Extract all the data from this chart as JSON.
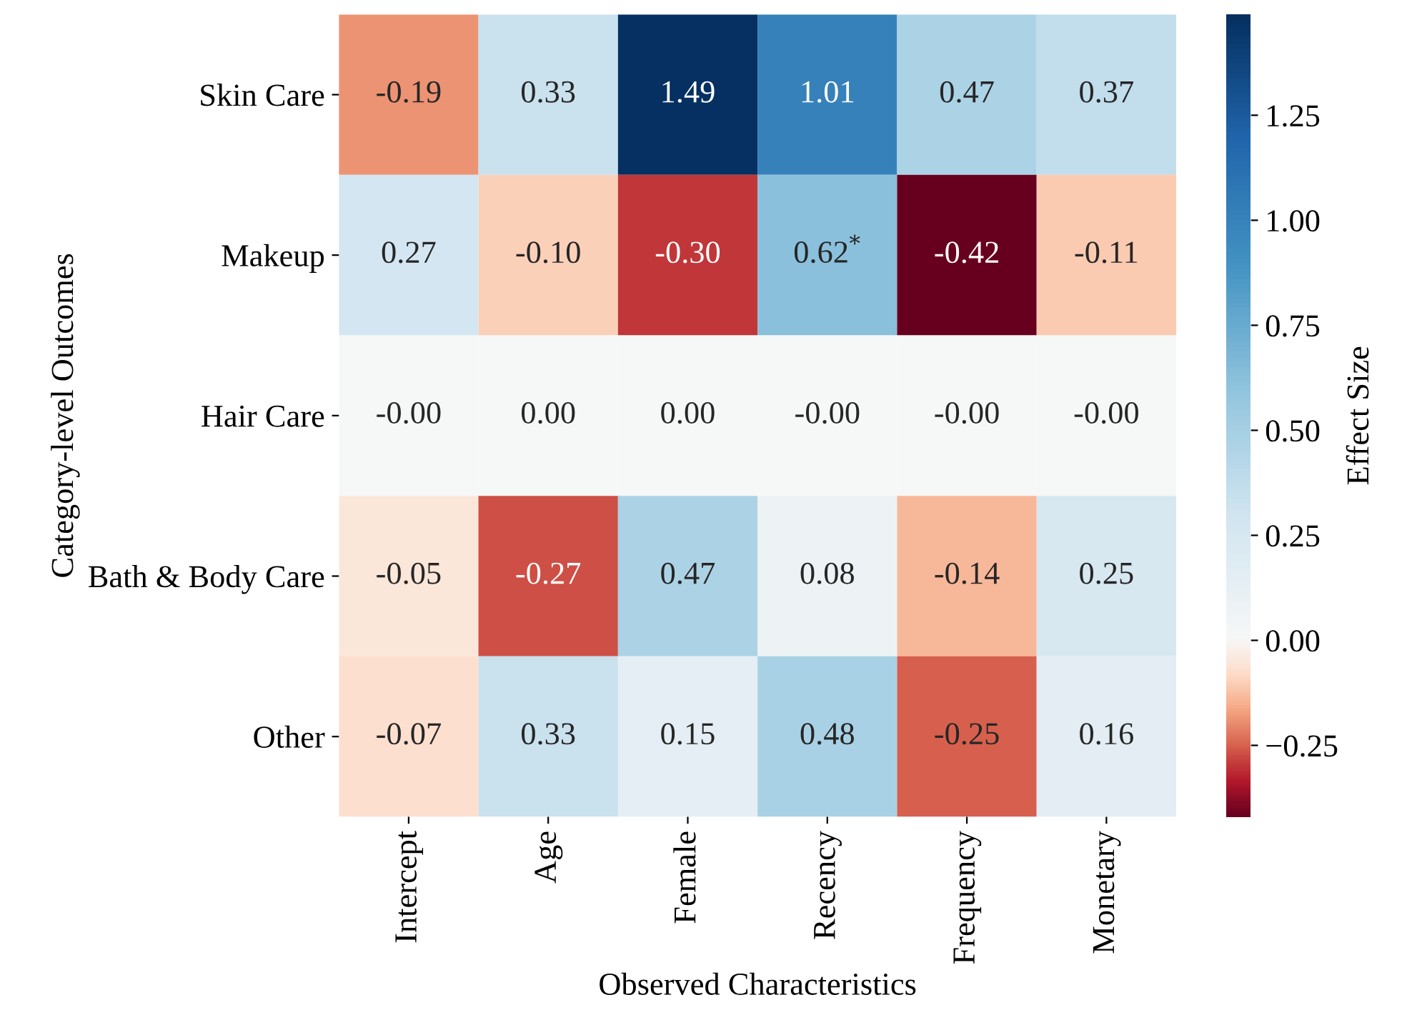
{
  "chart_data": {
    "type": "heatmap",
    "xlabel": "Observed Characteristics",
    "ylabel": "Category-level Outcomes",
    "clabel": "Effect Size",
    "categories": [
      "Intercept",
      "Age",
      "Female",
      "Recency",
      "Frequency",
      "Monetary"
    ],
    "y_categories": [
      "Skin Care",
      "Makeup",
      "Hair Care",
      "Bath & Body Care",
      "Other"
    ],
    "cells": [
      [
        -0.19,
        0.33,
        1.49,
        1.01,
        0.47,
        0.37
      ],
      [
        0.27,
        -0.1,
        -0.3,
        0.62,
        -0.42,
        -0.11
      ],
      [
        0,
        0,
        0,
        0,
        0,
        0
      ],
      [
        -0.05,
        -0.27,
        0.47,
        0.08,
        -0.14,
        0.25
      ],
      [
        -0.07,
        0.33,
        0.15,
        0.48,
        -0.25,
        0.16
      ]
    ],
    "cell_labels": [
      [
        "-0.19",
        "0.33",
        "1.49",
        "1.01",
        "0.47",
        "0.37"
      ],
      [
        "0.27",
        "-0.10",
        "-0.30",
        "0.62$^{*}$",
        "-0.42",
        "-0.11"
      ],
      [
        "-0.00",
        "0.00",
        "0.00",
        "-0.00",
        "-0.00",
        "-0.00"
      ],
      [
        "-0.05",
        "-0.27",
        "0.47",
        "0.08",
        "-0.14",
        "0.25"
      ],
      [
        "-0.07",
        "0.33",
        "0.15",
        "0.48",
        "-0.25",
        "0.16"
      ]
    ],
    "clim": [
      -0.42,
      1.49
    ],
    "cticks": [
      {
        "value": -0.25,
        "label": "−0.25"
      },
      {
        "value": 0,
        "label": "0.00"
      },
      {
        "value": 0.25,
        "label": "0.25"
      },
      {
        "value": 0.5,
        "label": "0.50"
      },
      {
        "value": 0.75,
        "label": "0.75"
      },
      {
        "value": 1.0,
        "label": "1.00"
      },
      {
        "value": 1.25,
        "label": "1.25"
      }
    ]
  }
}
